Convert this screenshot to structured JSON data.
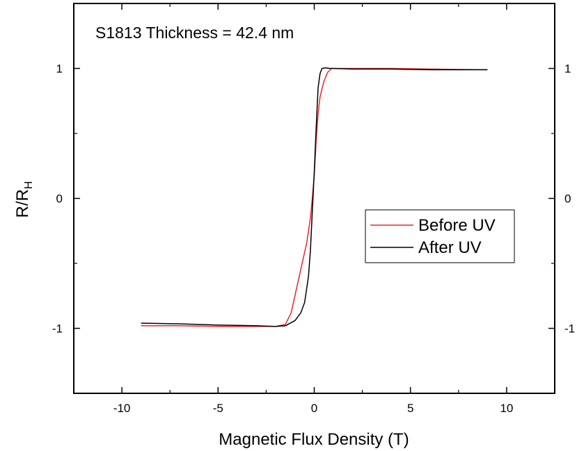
{
  "chart_data": {
    "type": "line",
    "annotation": "S1813 Thickness = 42.4 nm",
    "xlabel": "Magnetic Flux Density (T)",
    "ylabel": "R/R",
    "ylabel_sub": "H",
    "xlim": [
      -12.5,
      12.5
    ],
    "ylim": [
      -1.5,
      1.5
    ],
    "xticks": [
      -10,
      -5,
      0,
      5,
      10
    ],
    "xtick_labels": [
      "-10",
      "-5",
      "0",
      "5",
      "10"
    ],
    "yticks": [
      -1,
      0,
      1
    ],
    "ytick_labels": [
      "-1",
      "0",
      "1"
    ],
    "right_ytick_labels": [
      "-1",
      "0",
      "1"
    ],
    "legend_position": "center-right",
    "series": [
      {
        "name": "Before UV",
        "color": "#e8262b",
        "x": [
          -9,
          -7,
          -5,
          -3,
          -2,
          -1.5,
          -1.2,
          -0.9,
          -0.6,
          -0.4,
          -0.2,
          -0.1,
          0,
          0.1,
          0.2,
          0.3,
          0.5,
          0.7,
          0.9,
          1.2,
          2,
          4,
          6,
          9
        ],
        "y": [
          -0.98,
          -0.98,
          -0.985,
          -0.985,
          -0.985,
          -0.97,
          -0.88,
          -0.68,
          -0.48,
          -0.35,
          -0.15,
          0.0,
          0.18,
          0.45,
          0.65,
          0.78,
          0.9,
          0.97,
          1.0,
          1.0,
          1.0,
          1.0,
          0.995,
          0.99
        ]
      },
      {
        "name": "After UV",
        "color": "#000000",
        "x": [
          -9,
          -7,
          -5,
          -3,
          -2,
          -1.5,
          -1.0,
          -0.7,
          -0.5,
          -0.3,
          -0.2,
          -0.1,
          0,
          0.1,
          0.2,
          0.3,
          0.4,
          0.6,
          0.8,
          1.0,
          2,
          4,
          6,
          9
        ],
        "y": [
          -0.96,
          -0.965,
          -0.975,
          -0.98,
          -0.985,
          -0.98,
          -0.94,
          -0.88,
          -0.8,
          -0.6,
          -0.4,
          -0.1,
          0.2,
          0.55,
          0.85,
          0.96,
          1.0,
          1.005,
          1.0,
          1.0,
          0.995,
          0.995,
          0.99,
          0.99
        ]
      }
    ]
  }
}
